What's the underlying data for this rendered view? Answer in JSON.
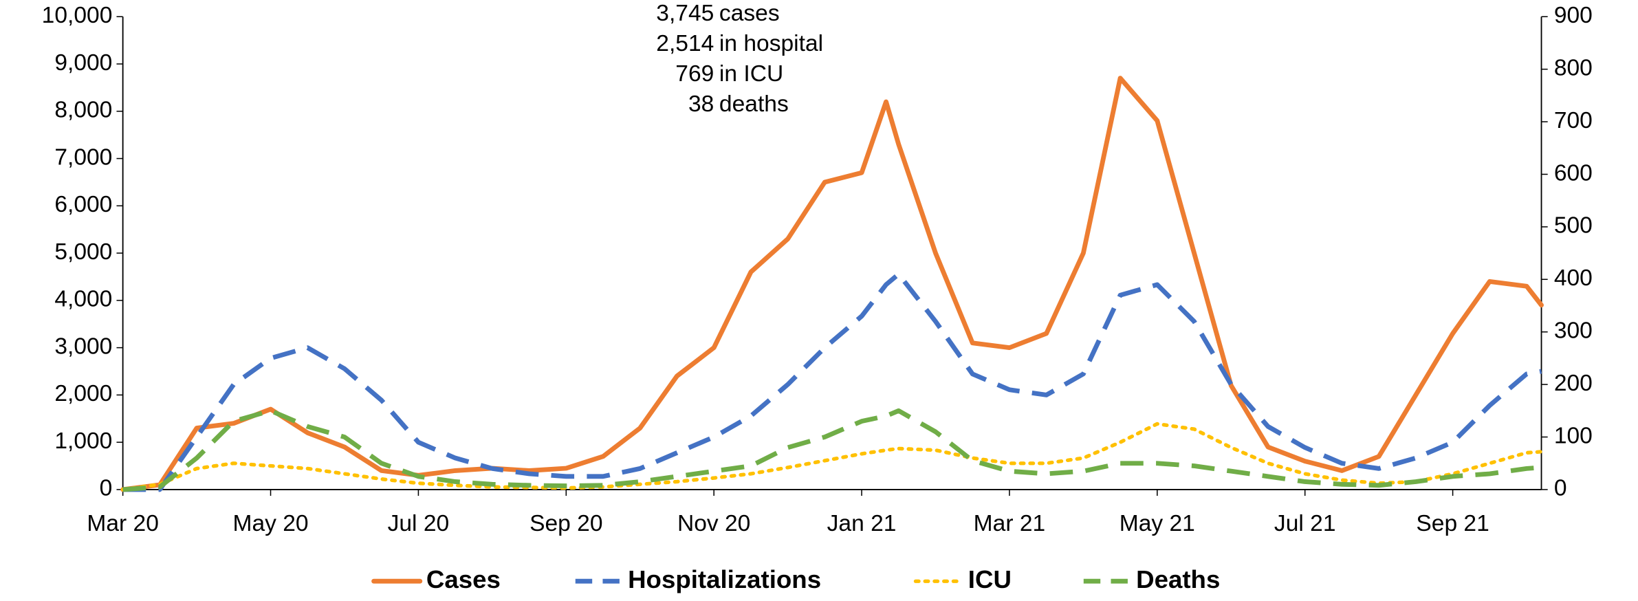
{
  "chart_data": {
    "type": "line",
    "annotations": [
      {
        "value": "3,745",
        "label": "cases"
      },
      {
        "value": "2,514",
        "label": "in hospital"
      },
      {
        "value": "769",
        "label": "in ICU"
      },
      {
        "value": "38",
        "label": "deaths"
      }
    ],
    "x": [
      0,
      0.5,
      1,
      1.5,
      2,
      2.5,
      3,
      3.5,
      4,
      4.5,
      5,
      5.5,
      6,
      6.5,
      7,
      7.5,
      8,
      8.5,
      9,
      9.5,
      10,
      10.33,
      10.5,
      11,
      11.5,
      12,
      12.5,
      13,
      13.5,
      14,
      14.5,
      15,
      15.5,
      16,
      16.5,
      17,
      17.5,
      18,
      18.5,
      19,
      19.2
    ],
    "xlim": [
      0,
      19.2
    ],
    "xticks": [
      {
        "value": 0,
        "label": "Mar 20"
      },
      {
        "value": 2,
        "label": "May 20"
      },
      {
        "value": 4,
        "label": "Jul 20"
      },
      {
        "value": 6,
        "label": "Sep 20"
      },
      {
        "value": 8,
        "label": "Nov 20"
      },
      {
        "value": 10,
        "label": "Jan 21"
      },
      {
        "value": 12,
        "label": "Mar 21"
      },
      {
        "value": 14,
        "label": "May 21"
      },
      {
        "value": 16,
        "label": "Jul 21"
      },
      {
        "value": 18,
        "label": "Sep 21"
      }
    ],
    "ylim": [
      0,
      10000
    ],
    "yticks": [
      0,
      {
        "value": 1000,
        "label": "1,000"
      },
      {
        "value": 2000,
        "label": "2,000"
      },
      {
        "value": 3000,
        "label": "3,000"
      },
      {
        "value": 4000,
        "label": "4,000"
      },
      {
        "value": 5000,
        "label": "5,000"
      },
      {
        "value": 6000,
        "label": "6,000"
      },
      {
        "value": 7000,
        "label": "7,000"
      },
      {
        "value": 8000,
        "label": "8,000"
      },
      {
        "value": 9000,
        "label": "9,000"
      },
      {
        "value": 10000,
        "label": "10,000"
      }
    ],
    "y2lim": [
      0,
      900
    ],
    "y2ticks": [
      0,
      100,
      200,
      300,
      400,
      500,
      600,
      700,
      800,
      900
    ],
    "series": [
      {
        "name": "Cases",
        "color": "#ED7D31",
        "style": "solid",
        "values": [
          0,
          100,
          1300,
          1400,
          1700,
          1200,
          900,
          400,
          300,
          400,
          450,
          400,
          450,
          700,
          1300,
          2400,
          3000,
          4600,
          5300,
          6500,
          6700,
          8200,
          7300,
          5000,
          3100,
          3000,
          3300,
          5000,
          8700,
          7800,
          5000,
          2200,
          900,
          600,
          400,
          700,
          2000,
          3300,
          4400,
          4300,
          3900
        ]
      },
      {
        "name": "Hospitalizations",
        "color": "#4472C4",
        "style": "dashed",
        "axis": "y2",
        "values": [
          0,
          0,
          100,
          200,
          250,
          270,
          230,
          170,
          90,
          60,
          40,
          30,
          25,
          25,
          40,
          70,
          100,
          140,
          200,
          270,
          330,
          390,
          410,
          320,
          220,
          190,
          180,
          220,
          370,
          390,
          320,
          200,
          120,
          80,
          50,
          40,
          60,
          90,
          160,
          220,
          225
        ]
      },
      {
        "name": "ICU",
        "color": "#FFC000",
        "style": "dotted",
        "axis": "y2",
        "values": [
          0,
          10,
          40,
          50,
          45,
          40,
          30,
          20,
          12,
          8,
          5,
          4,
          3,
          5,
          10,
          15,
          22,
          30,
          42,
          55,
          68,
          75,
          78,
          75,
          60,
          50,
          50,
          60,
          90,
          125,
          115,
          80,
          50,
          30,
          18,
          12,
          15,
          30,
          50,
          70,
          72
        ]
      },
      {
        "name": "Deaths",
        "color": "#70AD47",
        "style": "dashed",
        "axis": "y2",
        "values": [
          0,
          5,
          60,
          130,
          150,
          120,
          100,
          50,
          25,
          15,
          10,
          8,
          7,
          8,
          15,
          25,
          35,
          45,
          80,
          100,
          130,
          140,
          150,
          110,
          55,
          35,
          30,
          35,
          50,
          50,
          45,
          35,
          25,
          15,
          10,
          8,
          15,
          25,
          30,
          40,
          42
        ]
      }
    ]
  }
}
